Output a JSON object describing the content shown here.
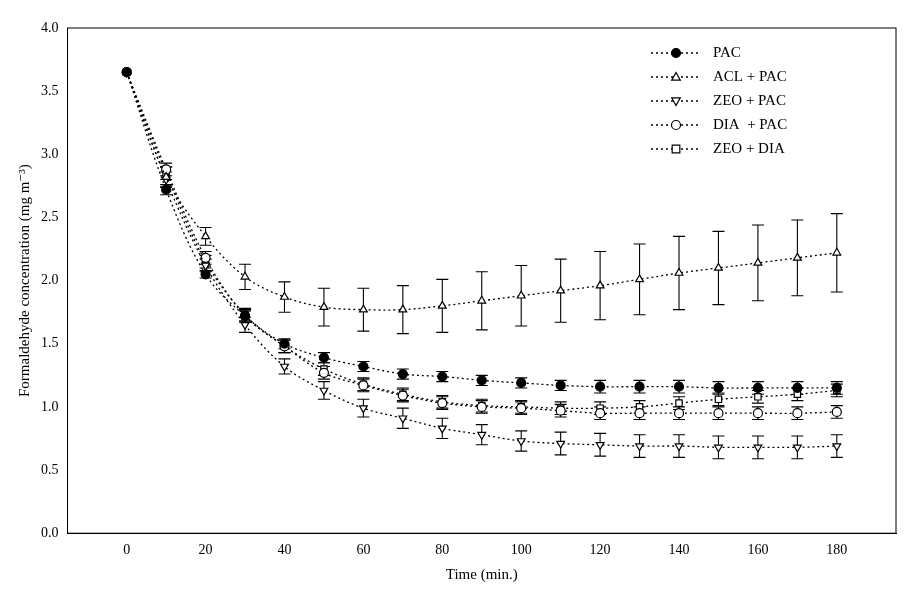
{
  "chart_data": {
    "type": "line",
    "x_label": "Time (min.)",
    "y_label": "Formaldehyde concentration (mg m⁻³)",
    "x": [
      0,
      10,
      20,
      30,
      40,
      50,
      60,
      70,
      80,
      90,
      100,
      110,
      120,
      130,
      140,
      150,
      160,
      170,
      180
    ],
    "xlim": [
      -15,
      195
    ],
    "xticks": [
      0,
      20,
      40,
      60,
      80,
      100,
      120,
      140,
      160,
      180
    ],
    "ylim": [
      0,
      4
    ],
    "yticks": [
      {
        "value": 0,
        "label": "0.0"
      },
      {
        "value": 0.5,
        "label": "0.5"
      },
      {
        "value": 1,
        "label": "1.0"
      },
      {
        "value": 1.5,
        "label": "1.5"
      },
      {
        "value": 2,
        "label": "2.0"
      },
      {
        "value": 2.5,
        "label": "2.5"
      },
      {
        "value": 3,
        "label": "3.0"
      },
      {
        "value": 3.5,
        "label": "3.5"
      },
      {
        "value": 4,
        "label": "4.0"
      }
    ],
    "grid": false,
    "legend": "upper right",
    "series": [
      {
        "name": "PAC",
        "color": "#000000",
        "marker": "filled_circle",
        "line_style": "dotted",
        "values": [
          3.65,
          2.72,
          2.05,
          1.72,
          1.5,
          1.39,
          1.32,
          1.26,
          1.24,
          1.21,
          1.19,
          1.17,
          1.16,
          1.16,
          1.16,
          1.15,
          1.15,
          1.15,
          1.15
        ],
        "errors": [
          0,
          0.04,
          0.03,
          0.04,
          0.04,
          0.04,
          0.04,
          0.04,
          0.04,
          0.04,
          0.04,
          0.04,
          0.05,
          0.05,
          0.05,
          0.05,
          0.05,
          0.05,
          0.05
        ]
      },
      {
        "name": "ACL + PAC",
        "color": "#000000",
        "marker": "open_triangle_up",
        "line_style": "dotted",
        "values": [
          3.65,
          2.82,
          2.35,
          2.03,
          1.87,
          1.79,
          1.77,
          1.77,
          1.8,
          1.84,
          1.88,
          1.92,
          1.96,
          2.01,
          2.06,
          2.1,
          2.14,
          2.18,
          2.22
        ],
        "errors": [
          0,
          0.08,
          0.07,
          0.1,
          0.12,
          0.15,
          0.17,
          0.19,
          0.21,
          0.23,
          0.24,
          0.25,
          0.27,
          0.28,
          0.29,
          0.29,
          0.3,
          0.3,
          0.31
        ]
      },
      {
        "name": "ZEO + PAC",
        "color": "#000000",
        "marker": "open_triangle_down",
        "line_style": "dotted",
        "values": [
          3.65,
          2.8,
          2.12,
          1.65,
          1.32,
          1.13,
          0.99,
          0.91,
          0.83,
          0.78,
          0.73,
          0.71,
          0.7,
          0.69,
          0.69,
          0.68,
          0.68,
          0.68,
          0.69
        ],
        "errors": [
          0,
          0.06,
          0.05,
          0.06,
          0.06,
          0.07,
          0.07,
          0.08,
          0.08,
          0.08,
          0.08,
          0.09,
          0.09,
          0.09,
          0.09,
          0.09,
          0.09,
          0.09,
          0.09
        ]
      },
      {
        "name": "DIA  + PAC",
        "color": "#000000",
        "marker": "open_circle",
        "line_style": "dotted",
        "values": [
          3.65,
          2.88,
          2.18,
          1.72,
          1.48,
          1.27,
          1.17,
          1.09,
          1.03,
          1.0,
          0.99,
          0.97,
          0.95,
          0.95,
          0.95,
          0.95,
          0.95,
          0.95,
          0.96
        ],
        "errors": [
          0,
          0.05,
          0.05,
          0.05,
          0.05,
          0.05,
          0.05,
          0.05,
          0.05,
          0.05,
          0.05,
          0.05,
          0.05,
          0.05,
          0.05,
          0.05,
          0.05,
          0.05,
          0.05
        ]
      },
      {
        "name": "ZEO + DIA",
        "color": "#000000",
        "marker": "open_square",
        "line_style": "dotted",
        "values": [
          3.65,
          2.85,
          2.15,
          1.73,
          1.48,
          1.3,
          1.18,
          1.1,
          1.04,
          1.01,
          1.0,
          0.99,
          0.99,
          1.0,
          1.03,
          1.06,
          1.08,
          1.1,
          1.13
        ],
        "errors": [
          0,
          0.05,
          0.05,
          0.05,
          0.05,
          0.05,
          0.05,
          0.05,
          0.05,
          0.05,
          0.05,
          0.05,
          0.05,
          0.05,
          0.05,
          0.05,
          0.05,
          0.05,
          0.05
        ]
      }
    ]
  }
}
